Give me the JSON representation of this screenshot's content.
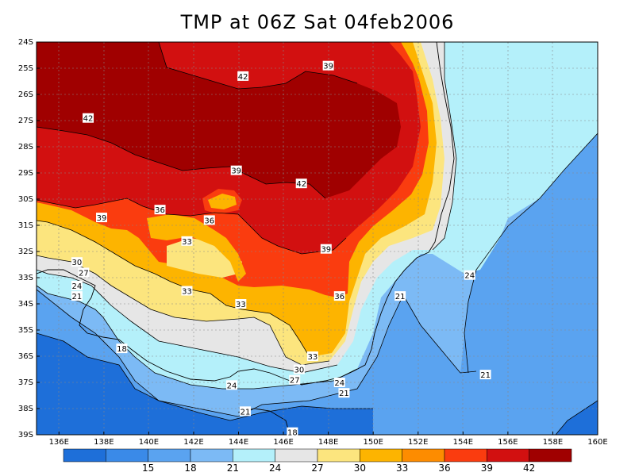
{
  "title": "TMP at 06Z Sat 04feb2006",
  "lat_ticks": [
    "24S",
    "25S",
    "26S",
    "27S",
    "28S",
    "29S",
    "30S",
    "31S",
    "32S",
    "33S",
    "34S",
    "35S",
    "36S",
    "37S",
    "38S",
    "39S"
  ],
  "lon_ticks": [
    "136E",
    "138E",
    "140E",
    "142E",
    "144E",
    "146E",
    "148E",
    "150E",
    "152E",
    "154E",
    "156E",
    "158E",
    "160E"
  ],
  "contour_labels": [
    {
      "text": "42",
      "lon": 137.3,
      "lat": -26.9
    },
    {
      "text": "42",
      "lon": 144.2,
      "lat": -25.3
    },
    {
      "text": "42",
      "lon": 146.8,
      "lat": -29.4
    },
    {
      "text": "39",
      "lon": 148.0,
      "lat": -24.9
    },
    {
      "text": "39",
      "lon": 143.9,
      "lat": -28.9
    },
    {
      "text": "39",
      "lon": 137.9,
      "lat": -30.7
    },
    {
      "text": "39",
      "lon": 147.9,
      "lat": -31.9
    },
    {
      "text": "36",
      "lon": 140.5,
      "lat": -30.4
    },
    {
      "text": "36",
      "lon": 142.7,
      "lat": -30.8
    },
    {
      "text": "36",
      "lon": 148.5,
      "lat": -33.7
    },
    {
      "text": "33",
      "lon": 141.7,
      "lat": -31.6
    },
    {
      "text": "33",
      "lon": 141.7,
      "lat": -33.5
    },
    {
      "text": "33",
      "lon": 144.1,
      "lat": -34.0
    },
    {
      "text": "33",
      "lon": 147.3,
      "lat": -36.0
    },
    {
      "text": "30",
      "lon": 136.8,
      "lat": -32.4
    },
    {
      "text": "30",
      "lon": 146.7,
      "lat": -36.5
    },
    {
      "text": "27",
      "lon": 137.1,
      "lat": -32.8
    },
    {
      "text": "27",
      "lon": 146.5,
      "lat": -36.9
    },
    {
      "text": "24",
      "lon": 136.8,
      "lat": -33.3
    },
    {
      "text": "24",
      "lon": 143.7,
      "lat": -37.1
    },
    {
      "text": "24",
      "lon": 148.5,
      "lat": -37.0
    },
    {
      "text": "24",
      "lon": 154.3,
      "lat": -32.9
    },
    {
      "text": "21",
      "lon": 136.8,
      "lat": -33.7
    },
    {
      "text": "21",
      "lon": 151.2,
      "lat": -33.7
    },
    {
      "text": "21",
      "lon": 148.7,
      "lat": -37.4
    },
    {
      "text": "21",
      "lon": 144.3,
      "lat": -38.1
    },
    {
      "text": "21",
      "lon": 155.0,
      "lat": -36.7
    },
    {
      "text": "18",
      "lon": 138.8,
      "lat": -35.7
    },
    {
      "text": "18",
      "lon": 146.4,
      "lat": -38.9
    }
  ],
  "colorbar": {
    "colors": [
      "#1e6fd9",
      "#3a8ae8",
      "#5aa3f0",
      "#7cbaf5",
      "#b4f0fa",
      "#e6e6e6",
      "#fce57e",
      "#fdb400",
      "#fd8c00",
      "#fa3c0f",
      "#d21010",
      "#a00000"
    ],
    "labels": [
      "15",
      "18",
      "21",
      "24",
      "27",
      "30",
      "33",
      "36",
      "39",
      "42"
    ]
  }
}
